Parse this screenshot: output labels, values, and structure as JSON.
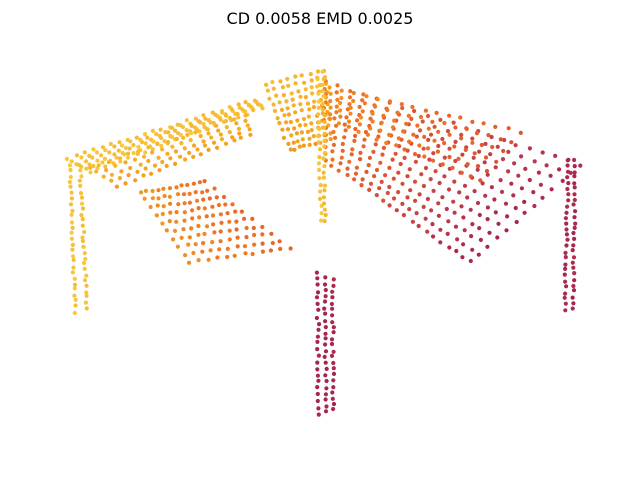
{
  "figure": {
    "title": "CD 0.0058  EMD 0.0025"
  },
  "render": {
    "point_radius": 2.1,
    "palette": [
      "#f7c83e",
      "#f5a31e",
      "#ee7526",
      "#dc5234",
      "#c13b47",
      "#a5254f"
    ]
  },
  "point_cloud": {
    "description_type": "3d-point-cloud",
    "parts": [
      {
        "name": "tabletop-left-wing",
        "color_range": [
          0.0,
          0.25
        ]
      },
      {
        "name": "tabletop-right-wing",
        "color_range": [
          0.3,
          1.0
        ]
      },
      {
        "name": "center-spine",
        "color_range": [
          0.0,
          0.1
        ]
      },
      {
        "name": "inner-sag-panel",
        "color_range": [
          0.2,
          0.45
        ]
      },
      {
        "name": "left-leg",
        "color_range": [
          0.0,
          0.05
        ]
      },
      {
        "name": "right-leg",
        "color_range": [
          0.95,
          1.0
        ]
      },
      {
        "name": "front-leg",
        "color_range": [
          1.0,
          1.0
        ]
      }
    ]
  }
}
